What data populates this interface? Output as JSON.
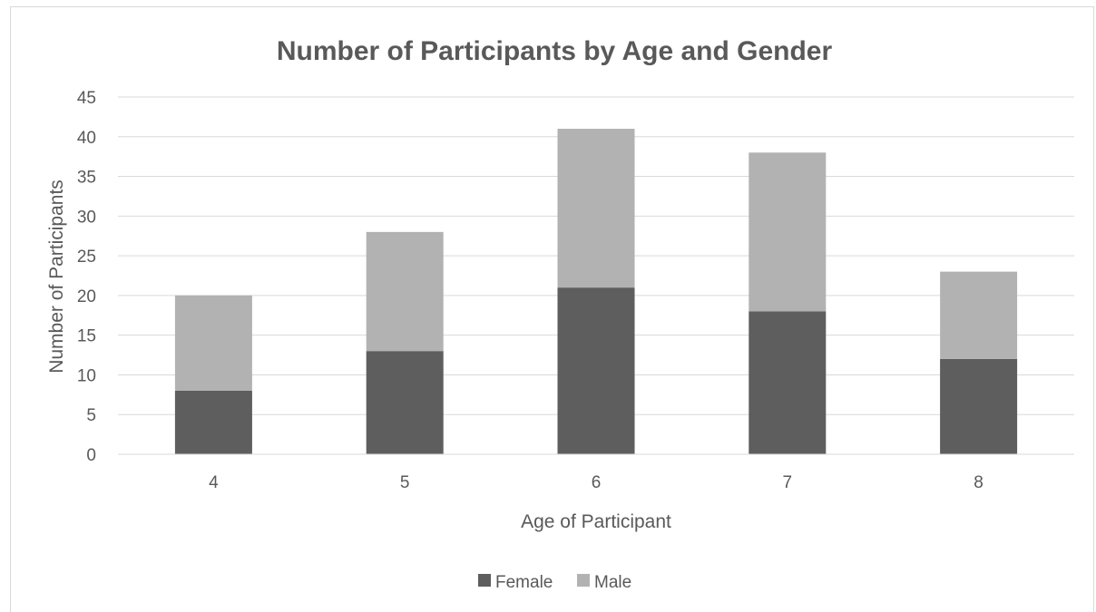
{
  "chart_data": {
    "type": "bar",
    "stacked": true,
    "title": "Number of Participants by Age and Gender",
    "xlabel": "Age of Participant",
    "ylabel": "Number of Participants",
    "categories": [
      "4",
      "5",
      "6",
      "7",
      "8"
    ],
    "series": [
      {
        "name": "Female",
        "values": [
          8,
          13,
          21,
          18,
          12
        ],
        "color": "#5e5e5e"
      },
      {
        "name": "Male",
        "values": [
          12,
          15,
          20,
          20,
          11
        ],
        "color": "#b2b2b2"
      }
    ],
    "ylim": [
      0,
      45
    ],
    "yticks": [
      "0",
      "5",
      "10",
      "15",
      "20",
      "25",
      "30",
      "35",
      "40",
      "45"
    ],
    "grid": true,
    "legend_position": "bottom"
  }
}
